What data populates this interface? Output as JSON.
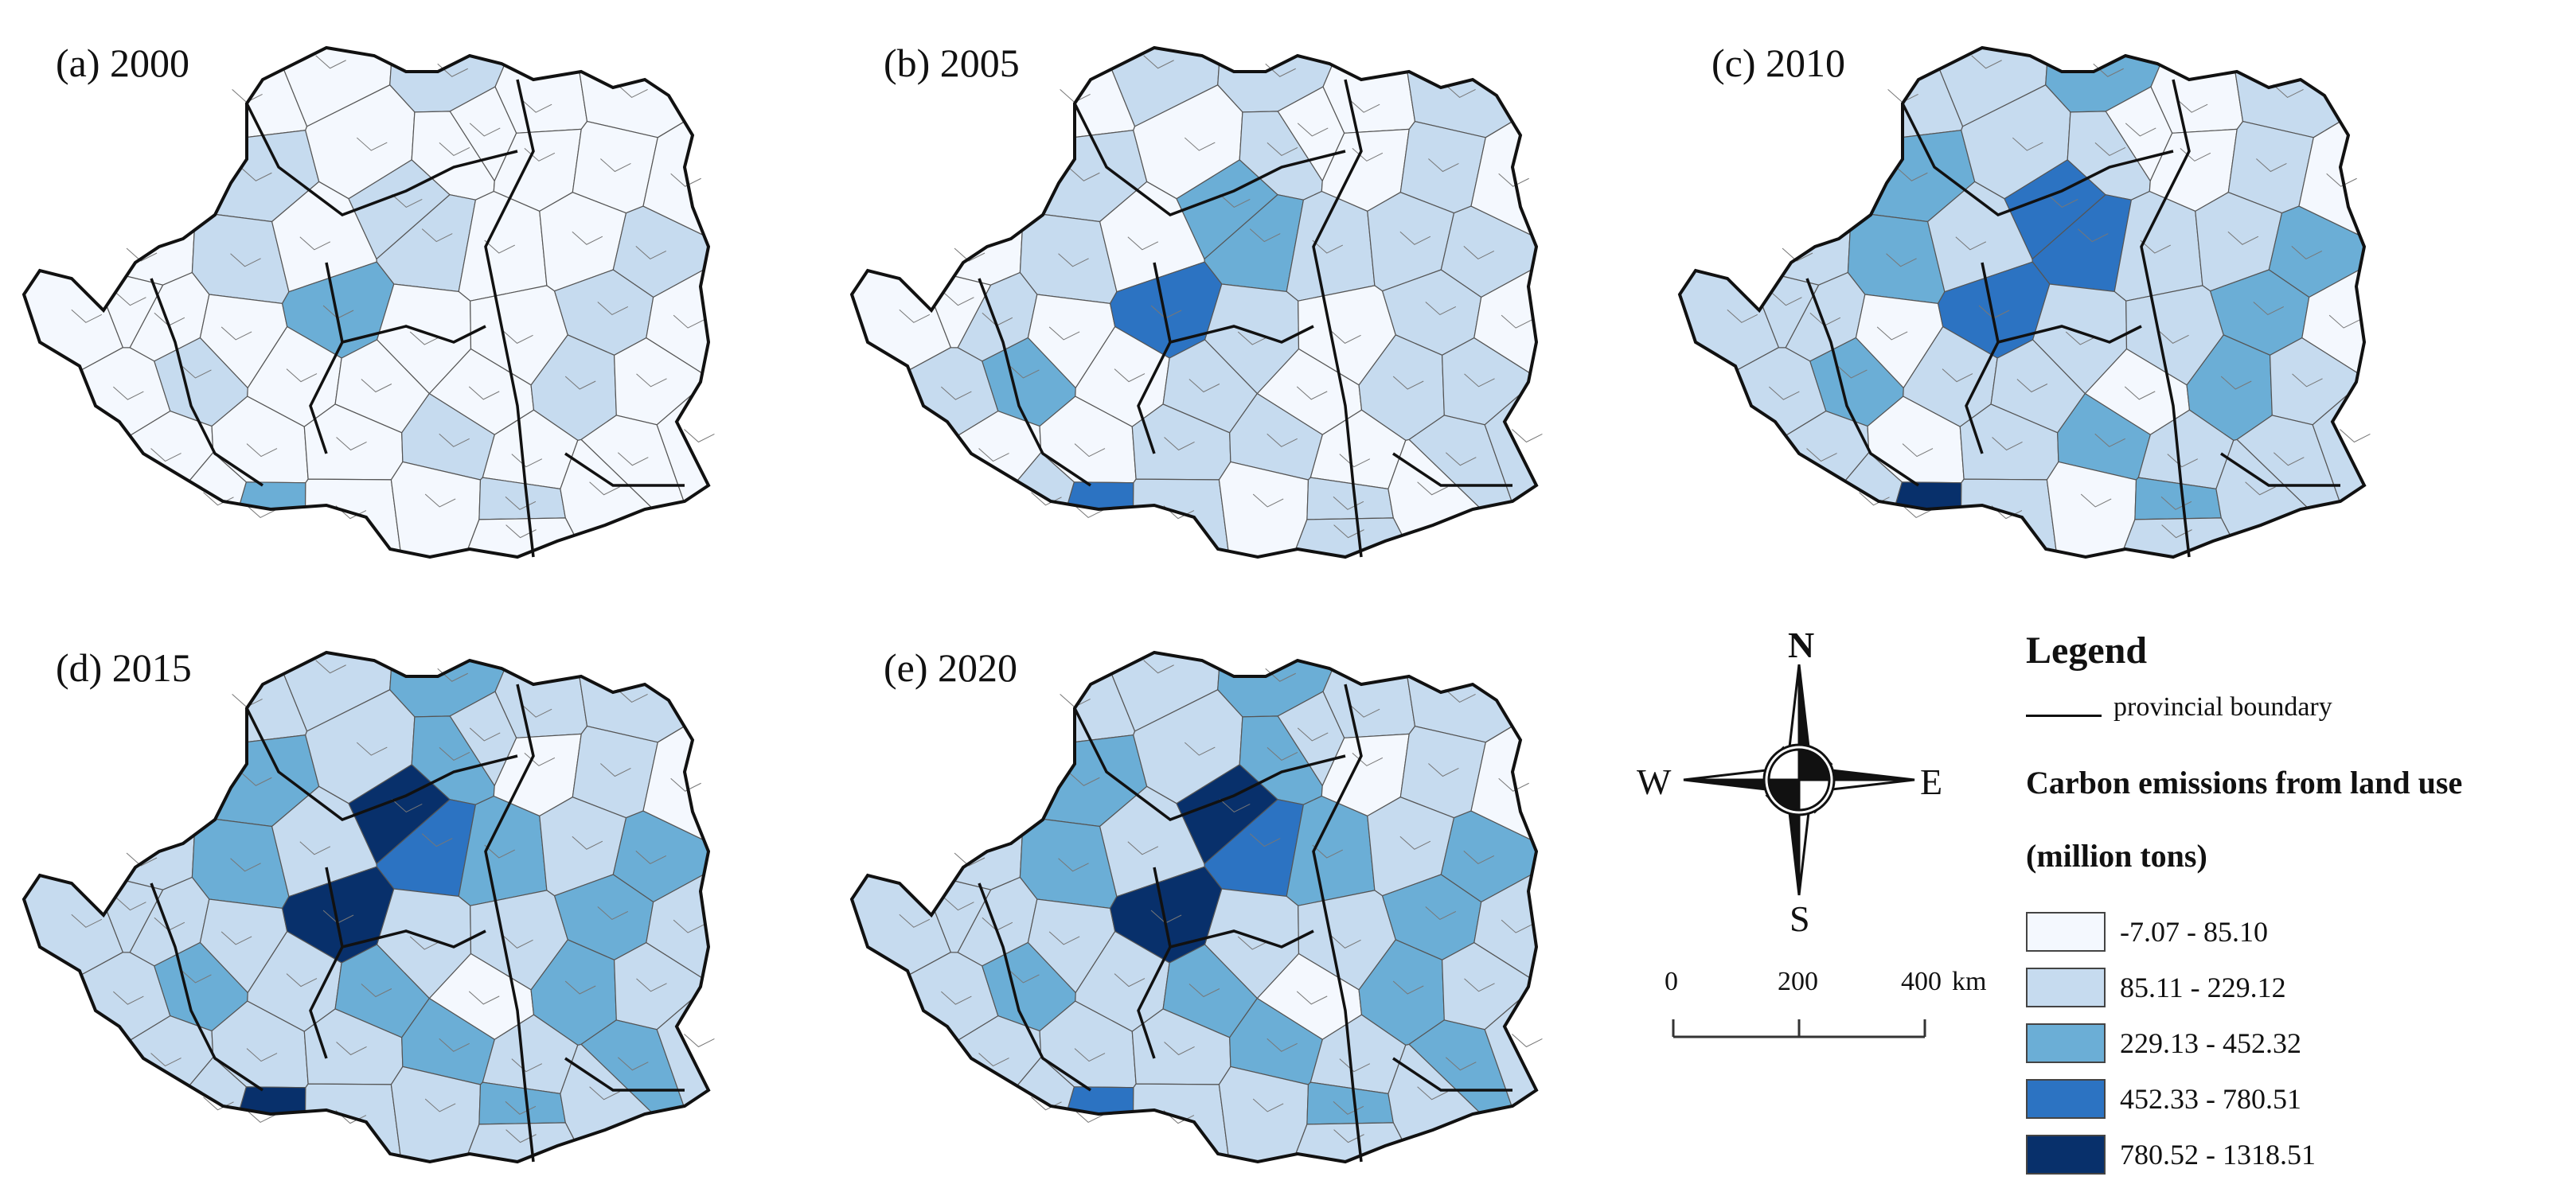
{
  "panels": [
    {
      "label": "(a) 2000",
      "classes": [
        0,
        0,
        1,
        0,
        0,
        1,
        0,
        0,
        0,
        0,
        0,
        1,
        0,
        1,
        0,
        0,
        1,
        0,
        0,
        0,
        2,
        0,
        0,
        1,
        0,
        0,
        1,
        0,
        0,
        0,
        1,
        0,
        0,
        0,
        0,
        1,
        0,
        0,
        2,
        0,
        0,
        1,
        0,
        0,
        0,
        1,
        0,
        0,
        0,
        0
      ]
    },
    {
      "label": "(b) 2005",
      "classes": [
        0,
        1,
        1,
        0,
        1,
        1,
        0,
        1,
        0,
        1,
        0,
        1,
        0,
        2,
        1,
        1,
        1,
        0,
        1,
        0,
        3,
        1,
        0,
        1,
        0,
        1,
        2,
        0,
        1,
        0,
        1,
        1,
        0,
        0,
        1,
        1,
        0,
        1,
        3,
        1,
        0,
        1,
        0,
        1,
        0,
        2,
        0,
        1,
        0,
        1
      ]
    },
    {
      "label": "(c) 2010",
      "classes": [
        1,
        1,
        2,
        0,
        1,
        2,
        1,
        1,
        0,
        1,
        1,
        2,
        1,
        3,
        1,
        1,
        2,
        1,
        1,
        0,
        3,
        1,
        1,
        2,
        0,
        1,
        2,
        1,
        1,
        0,
        2,
        1,
        1,
        0,
        1,
        2,
        1,
        1,
        4,
        1,
        0,
        2,
        1,
        1,
        0,
        3,
        1,
        1,
        0,
        1
      ]
    },
    {
      "label": "(d) 2015",
      "classes": [
        1,
        1,
        2,
        1,
        1,
        2,
        1,
        2,
        0,
        1,
        1,
        2,
        1,
        3,
        2,
        1,
        2,
        1,
        1,
        1,
        4,
        1,
        1,
        2,
        1,
        1,
        2,
        1,
        2,
        0,
        2,
        1,
        1,
        1,
        1,
        2,
        1,
        2,
        4,
        1,
        1,
        2,
        1,
        1,
        0,
        4,
        1,
        1,
        1,
        1
      ]
    },
    {
      "label": "(e) 2020",
      "classes": [
        1,
        1,
        2,
        1,
        1,
        2,
        1,
        2,
        0,
        1,
        1,
        2,
        1,
        3,
        2,
        1,
        2,
        1,
        1,
        1,
        4,
        1,
        1,
        2,
        1,
        1,
        2,
        1,
        2,
        0,
        2,
        1,
        1,
        1,
        1,
        2,
        1,
        2,
        3,
        1,
        1,
        2,
        1,
        1,
        0,
        4,
        1,
        1,
        1,
        1
      ]
    }
  ],
  "compass": {
    "north": "N",
    "south": "S",
    "east": "E",
    "west": "W"
  },
  "scalebar": {
    "ticks": [
      "0",
      "200",
      "400"
    ],
    "unit": "km"
  },
  "legend": {
    "title": "Legend",
    "boundary_label": "provincial boundary",
    "heading_line1": "Carbon emissions from land use",
    "heading_line2": "(million tons)",
    "classes": [
      {
        "label": "-7.07 - 85.10",
        "color": "#f4f8fe"
      },
      {
        "label": "85.11 - 229.12",
        "color": "#c6dbef"
      },
      {
        "label": "229.13 - 452.32",
        "color": "#6baed6"
      },
      {
        "label": "452.33 - 780.51",
        "color": "#2c73c2"
      },
      {
        "label": "780.52 - 1318.51",
        "color": "#08306b"
      }
    ]
  }
}
